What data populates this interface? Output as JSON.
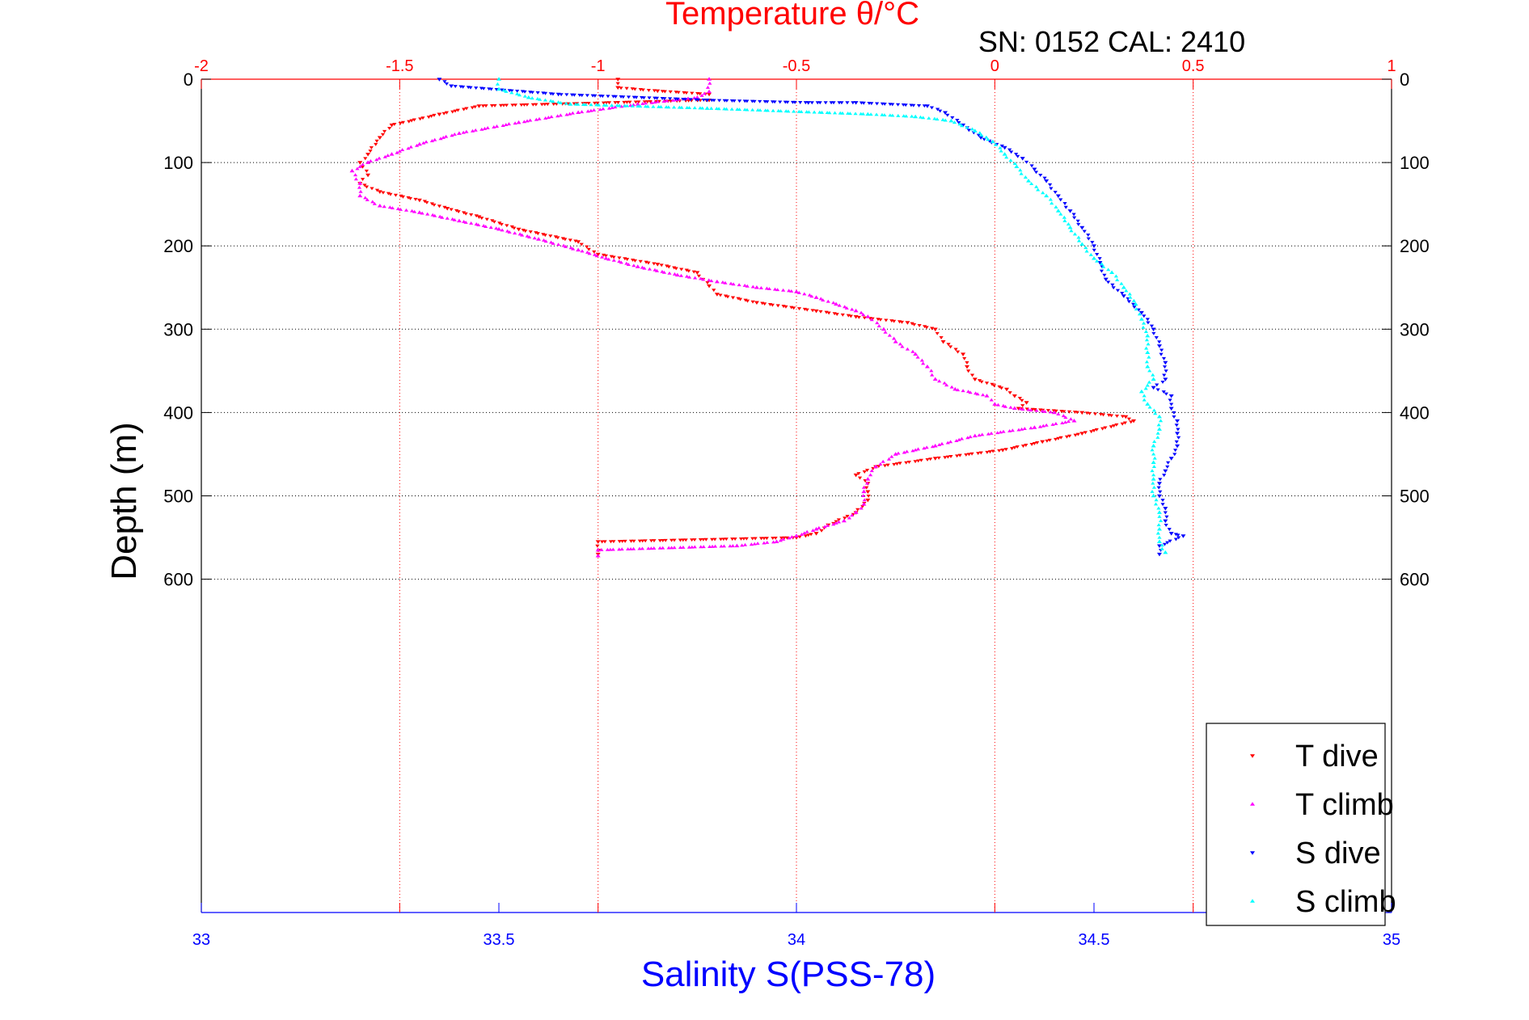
{
  "chart_data": {
    "type": "scatter",
    "title": "Temperature θ/°C",
    "subtitle": "SN: 0152  CAL: 2410",
    "ylabel": "Depth (m)",
    "xlabel": "Salinity S(PSS-78)",
    "ylim": [
      0,
      1000
    ],
    "y_reversed": true,
    "y_ticks": [
      0,
      100,
      200,
      300,
      400,
      500,
      600
    ],
    "temperature_axis": {
      "position": "top",
      "range": [
        -2,
        1
      ],
      "ticks": [
        "-2",
        "-1.5",
        "-1",
        "-0.5",
        "0",
        "0.5",
        "1"
      ],
      "color": "#ff0000",
      "grid": true
    },
    "salinity_axis": {
      "position": "bottom",
      "range": [
        33,
        35
      ],
      "ticks": [
        "33",
        "33.5",
        "34",
        "34.5",
        "35"
      ],
      "color": "#0000ff"
    },
    "grid": "horizontal dotted at depth ticks; vertical dotted red at temperature ticks",
    "legend_position": "bottom-right",
    "series": [
      {
        "name": "T dive",
        "axis": "temperature",
        "color": "#ff0000",
        "marker": "triangle-down",
        "points": [
          [
            -0.95,
            0
          ],
          [
            -0.95,
            10
          ],
          [
            -0.85,
            14
          ],
          [
            -0.72,
            18
          ],
          [
            -0.72,
            25
          ],
          [
            -1.3,
            32
          ],
          [
            -1.4,
            42
          ],
          [
            -1.52,
            55
          ],
          [
            -1.55,
            70
          ],
          [
            -1.58,
            90
          ],
          [
            -1.6,
            100
          ],
          [
            -1.58,
            115
          ],
          [
            -1.6,
            125
          ],
          [
            -1.55,
            135
          ],
          [
            -1.45,
            145
          ],
          [
            -1.38,
            155
          ],
          [
            -1.3,
            165
          ],
          [
            -1.2,
            180
          ],
          [
            -1.05,
            195
          ],
          [
            -1.0,
            210
          ],
          [
            -0.85,
            222
          ],
          [
            -0.75,
            232
          ],
          [
            -0.72,
            248
          ],
          [
            -0.7,
            258
          ],
          [
            -0.6,
            268
          ],
          [
            -0.45,
            278
          ],
          [
            -0.35,
            285
          ],
          [
            -0.22,
            292
          ],
          [
            -0.15,
            300
          ],
          [
            -0.13,
            315
          ],
          [
            -0.08,
            330
          ],
          [
            -0.07,
            345
          ],
          [
            -0.05,
            360
          ],
          [
            0.03,
            372
          ],
          [
            0.05,
            380
          ],
          [
            0.08,
            388
          ],
          [
            0.06,
            395
          ],
          [
            0.22,
            400
          ],
          [
            0.33,
            405
          ],
          [
            0.35,
            410
          ],
          [
            0.22,
            425
          ],
          [
            0.12,
            435
          ],
          [
            0.02,
            445
          ],
          [
            -0.15,
            455
          ],
          [
            -0.3,
            465
          ],
          [
            -0.35,
            475
          ],
          [
            -0.32,
            485
          ],
          [
            -0.32,
            495
          ],
          [
            -0.32,
            505
          ],
          [
            -0.35,
            520
          ],
          [
            -0.42,
            535
          ],
          [
            -0.45,
            545
          ],
          [
            -0.5,
            550
          ],
          [
            -1.0,
            555
          ],
          [
            -1.0,
            570
          ]
        ]
      },
      {
        "name": "T climb",
        "axis": "temperature",
        "color": "#ff00ff",
        "marker": "triangle-up",
        "points": [
          [
            -0.72,
            0
          ],
          [
            -0.72,
            15
          ],
          [
            -0.75,
            22
          ],
          [
            -0.9,
            30
          ],
          [
            -1.05,
            40
          ],
          [
            -1.2,
            52
          ],
          [
            -1.35,
            65
          ],
          [
            -1.45,
            78
          ],
          [
            -1.52,
            90
          ],
          [
            -1.58,
            100
          ],
          [
            -1.62,
            110
          ],
          [
            -1.6,
            125
          ],
          [
            -1.6,
            140
          ],
          [
            -1.55,
            152
          ],
          [
            -1.45,
            160
          ],
          [
            -1.35,
            170
          ],
          [
            -1.25,
            180
          ],
          [
            -1.15,
            192
          ],
          [
            -1.05,
            205
          ],
          [
            -0.98,
            215
          ],
          [
            -0.9,
            225
          ],
          [
            -0.8,
            235
          ],
          [
            -0.7,
            243
          ],
          [
            -0.6,
            250
          ],
          [
            -0.5,
            255
          ],
          [
            -0.45,
            262
          ],
          [
            -0.4,
            270
          ],
          [
            -0.35,
            278
          ],
          [
            -0.32,
            285
          ],
          [
            -0.28,
            300
          ],
          [
            -0.25,
            315
          ],
          [
            -0.2,
            330
          ],
          [
            -0.17,
            345
          ],
          [
            -0.15,
            360
          ],
          [
            -0.1,
            372
          ],
          [
            -0.02,
            380
          ],
          [
            0.0,
            390
          ],
          [
            0.05,
            395
          ],
          [
            0.15,
            400
          ],
          [
            0.2,
            410
          ],
          [
            0.1,
            418
          ],
          [
            -0.05,
            428
          ],
          [
            -0.15,
            440
          ],
          [
            -0.25,
            450
          ],
          [
            -0.3,
            465
          ],
          [
            -0.32,
            480
          ],
          [
            -0.33,
            495
          ],
          [
            -0.33,
            510
          ],
          [
            -0.35,
            520
          ],
          [
            -0.38,
            530
          ],
          [
            -0.45,
            540
          ],
          [
            -0.5,
            548
          ],
          [
            -0.55,
            555
          ],
          [
            -0.65,
            560
          ],
          [
            -1.0,
            565
          ],
          [
            -1.0,
            572
          ]
        ]
      },
      {
        "name": "S dive",
        "axis": "salinity",
        "color": "#0000ff",
        "marker": "triangle-down",
        "points": [
          [
            33.4,
            0
          ],
          [
            33.42,
            8
          ],
          [
            33.6,
            18
          ],
          [
            33.85,
            25
          ],
          [
            34.02,
            28
          ],
          [
            34.1,
            28
          ],
          [
            34.22,
            32
          ],
          [
            34.25,
            40
          ],
          [
            34.28,
            55
          ],
          [
            34.31,
            70
          ],
          [
            34.35,
            82
          ],
          [
            34.38,
            95
          ],
          [
            34.4,
            108
          ],
          [
            34.42,
            122
          ],
          [
            34.44,
            140
          ],
          [
            34.46,
            158
          ],
          [
            34.48,
            178
          ],
          [
            34.5,
            200
          ],
          [
            34.51,
            220
          ],
          [
            34.52,
            240
          ],
          [
            34.55,
            260
          ],
          [
            34.58,
            280
          ],
          [
            34.6,
            300
          ],
          [
            34.61,
            320
          ],
          [
            34.62,
            340
          ],
          [
            34.62,
            360
          ],
          [
            34.6,
            370
          ],
          [
            34.63,
            380
          ],
          [
            34.63,
            395
          ],
          [
            34.64,
            410
          ],
          [
            34.64,
            425
          ],
          [
            34.64,
            440
          ],
          [
            34.63,
            455
          ],
          [
            34.62,
            470
          ],
          [
            34.61,
            485
          ],
          [
            34.61,
            500
          ],
          [
            34.62,
            515
          ],
          [
            34.62,
            530
          ],
          [
            34.63,
            545
          ],
          [
            34.65,
            548
          ],
          [
            34.61,
            560
          ],
          [
            34.61,
            570
          ]
        ]
      },
      {
        "name": "S climb",
        "axis": "salinity",
        "color": "#00ffff",
        "marker": "triangle-up",
        "points": [
          [
            33.5,
            0
          ],
          [
            33.5,
            12
          ],
          [
            33.55,
            22
          ],
          [
            33.62,
            30
          ],
          [
            33.85,
            35
          ],
          [
            34.12,
            42
          ],
          [
            34.2,
            45
          ],
          [
            34.26,
            50
          ],
          [
            34.3,
            62
          ],
          [
            34.33,
            75
          ],
          [
            34.35,
            90
          ],
          [
            34.37,
            105
          ],
          [
            34.39,
            122
          ],
          [
            34.42,
            140
          ],
          [
            34.44,
            158
          ],
          [
            34.46,
            178
          ],
          [
            34.48,
            198
          ],
          [
            34.5,
            215
          ],
          [
            34.53,
            232
          ],
          [
            34.55,
            250
          ],
          [
            34.57,
            270
          ],
          [
            34.58,
            288
          ],
          [
            34.59,
            308
          ],
          [
            34.59,
            328
          ],
          [
            34.59,
            345
          ],
          [
            34.6,
            360
          ],
          [
            34.58,
            375
          ],
          [
            34.59,
            390
          ],
          [
            34.61,
            405
          ],
          [
            34.61,
            420
          ],
          [
            34.6,
            440
          ],
          [
            34.6,
            460
          ],
          [
            34.6,
            480
          ],
          [
            34.6,
            500
          ],
          [
            34.61,
            520
          ],
          [
            34.61,
            540
          ],
          [
            34.61,
            555
          ],
          [
            34.62,
            568
          ]
        ]
      }
    ],
    "colors": {
      "temperature_axis": "#ff0000",
      "salinity_axis": "#0000ff",
      "grid": "#000000"
    }
  }
}
